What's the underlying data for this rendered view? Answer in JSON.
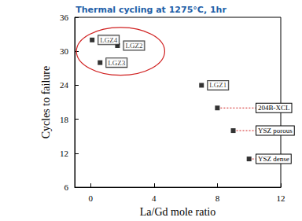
{
  "chart_data": {
    "type": "scatter",
    "title": "Thermal cycling at 1275°C, 1hr",
    "x_label": "La/Gd mole ratio",
    "y_label": "Cycles to failure",
    "x": [
      0.1,
      1.7,
      0.6,
      7,
      8,
      9,
      10
    ],
    "values": [
      32,
      31,
      28,
      24,
      20,
      16,
      11
    ],
    "point_labels": [
      "LGZ4",
      "LGZ2",
      "LGZ3",
      "LGZ1",
      "204B-XCL",
      "YSZ porous",
      "YSZ dense"
    ],
    "color": "#000000",
    "marker": "square",
    "xlim": [
      -1,
      12
    ],
    "xticks": [
      0,
      4,
      8,
      12
    ],
    "ylim": [
      6,
      36
    ],
    "yticks": [
      6,
      12,
      18,
      24,
      30,
      36
    ],
    "grid": false
  }
}
